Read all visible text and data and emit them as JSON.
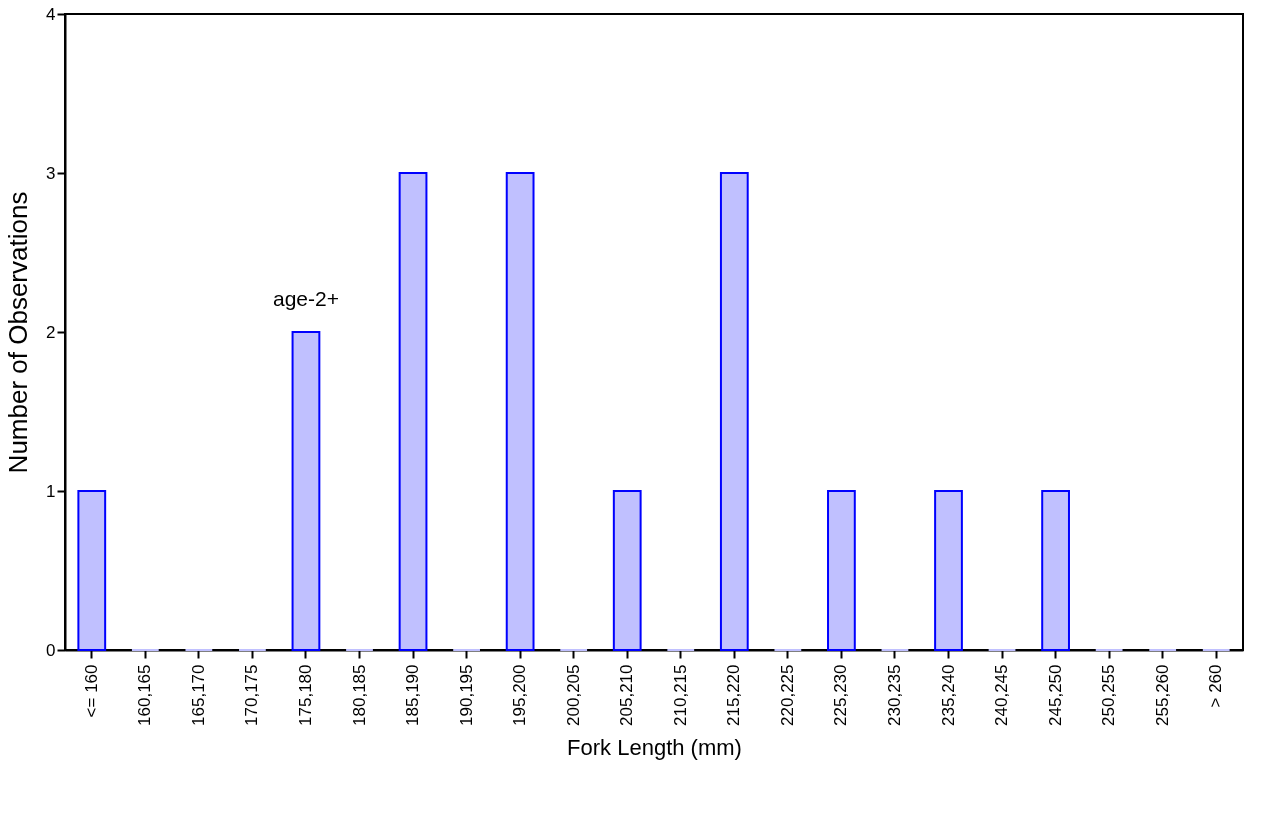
{
  "chart_data": {
    "type": "bar",
    "xlabel": "Fork Length (mm)",
    "ylabel": "Number of Observations",
    "categories": [
      "<= 160",
      "160,165",
      "165,170",
      "170,175",
      "175,180",
      "180,185",
      "185,190",
      "190,195",
      "195,200",
      "200,205",
      "205,210",
      "210,215",
      "215,220",
      "220,225",
      "225,230",
      "230,235",
      "235,240",
      "240,245",
      "245,250",
      "250,255",
      "255,260",
      "> 260"
    ],
    "values": [
      1,
      0,
      0,
      0,
      2,
      0,
      3,
      0,
      3,
      0,
      1,
      0,
      3,
      0,
      1,
      0,
      1,
      0,
      1,
      0,
      0,
      0
    ],
    "color": "#c0c0ff",
    "ylim": [
      0,
      4
    ],
    "yticks": [
      0,
      1,
      2,
      3,
      4
    ],
    "grid": false,
    "annotations": [
      {
        "text": "age-2+",
        "x": "175,180",
        "y": 2
      }
    ]
  }
}
